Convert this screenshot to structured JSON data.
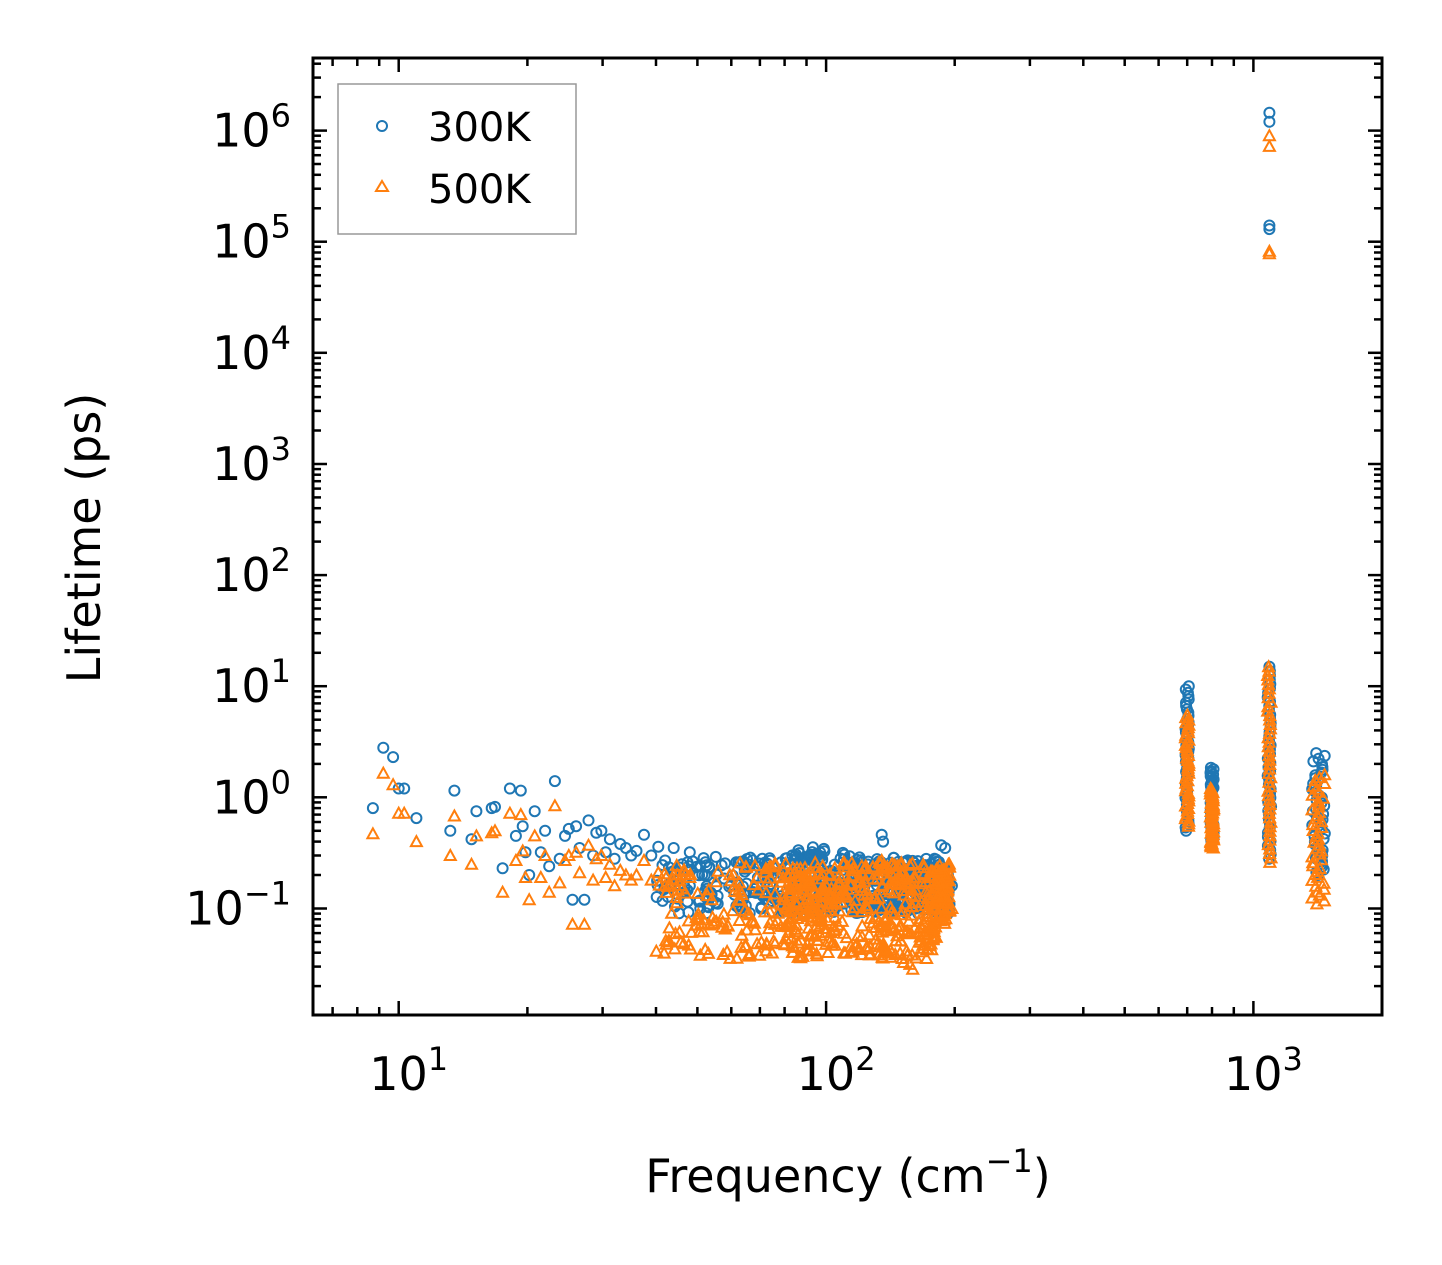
{
  "chart_data": {
    "type": "scatter",
    "title": "",
    "xlabel": "Frequency (cm",
    "xlabel_sup": "−1",
    "xlabel_close": ")",
    "ylabel": "Lifetime (ps)",
    "xscale": "log",
    "yscale": "log",
    "xlim": [
      6.3,
      2000
    ],
    "ylim": [
      0.011,
      4500000
    ],
    "x_ticks": [
      {
        "value": 10,
        "base": "10",
        "exp": "1"
      },
      {
        "value": 100,
        "base": "10",
        "exp": "2"
      },
      {
        "value": 1000,
        "base": "10",
        "exp": "3"
      }
    ],
    "y_ticks": [
      {
        "value": 0.1,
        "base": "10",
        "exp": "−1"
      },
      {
        "value": 1,
        "base": "10",
        "exp": "0"
      },
      {
        "value": 10,
        "base": "10",
        "exp": "1"
      },
      {
        "value": 100,
        "base": "10",
        "exp": "2"
      },
      {
        "value": 1000,
        "base": "10",
        "exp": "3"
      },
      {
        "value": 10000,
        "base": "10",
        "exp": "4"
      },
      {
        "value": 100000,
        "base": "10",
        "exp": "5"
      },
      {
        "value": 1000000,
        "base": "10",
        "exp": "6"
      }
    ],
    "legend_position": "top-left",
    "series": [
      {
        "name": "300K",
        "marker": "circle",
        "color": "#1f77b4",
        "points": [
          [
            8.7,
            0.8
          ],
          [
            9.2,
            2.8
          ],
          [
            9.7,
            2.3
          ],
          [
            10.0,
            1.2
          ],
          [
            10.3,
            1.2
          ],
          [
            11.0,
            0.65
          ],
          [
            13.5,
            1.15
          ],
          [
            13.2,
            0.5
          ],
          [
            14.8,
            0.42
          ],
          [
            15.2,
            0.75
          ],
          [
            16.5,
            0.8
          ],
          [
            16.8,
            0.82
          ],
          [
            17.5,
            0.23
          ],
          [
            18.2,
            1.2
          ],
          [
            18.8,
            0.45
          ],
          [
            19.3,
            1.15
          ],
          [
            19.5,
            0.55
          ],
          [
            19.8,
            0.32
          ],
          [
            20.2,
            0.2
          ],
          [
            20.8,
            0.75
          ],
          [
            21.5,
            0.32
          ],
          [
            22.0,
            0.5
          ],
          [
            22.5,
            0.24
          ],
          [
            23.2,
            1.4
          ],
          [
            23.8,
            0.28
          ],
          [
            24.5,
            0.45
          ],
          [
            25.0,
            0.52
          ],
          [
            25.5,
            0.12
          ],
          [
            26.0,
            0.55
          ],
          [
            26.5,
            0.35
          ],
          [
            27.2,
            0.12
          ],
          [
            27.8,
            0.62
          ],
          [
            28.5,
            0.3
          ],
          [
            29.0,
            0.48
          ],
          [
            29.8,
            0.5
          ],
          [
            30.5,
            0.32
          ],
          [
            31.2,
            0.42
          ],
          [
            32.0,
            0.28
          ],
          [
            33.0,
            0.38
          ],
          [
            34.0,
            0.35
          ],
          [
            35.0,
            0.3
          ],
          [
            36.0,
            0.33
          ],
          [
            37.5,
            0.46
          ],
          [
            39.0,
            0.3
          ],
          [
            40.5,
            0.36
          ],
          [
            42.0,
            0.27
          ],
          [
            44.0,
            0.35
          ],
          [
            46.0,
            0.25
          ],
          [
            48.0,
            0.32
          ],
          [
            135.0,
            0.46
          ],
          [
            136.0,
            0.4
          ],
          [
            186.0,
            0.37
          ],
          [
            190.0,
            0.35
          ],
          [
            197.0,
            0.16
          ]
        ],
        "band_points": [
          [
            40,
            0.26
          ],
          [
            60,
            0.3
          ],
          [
            80,
            0.28
          ],
          [
            90,
            0.38
          ],
          [
            100,
            0.34
          ],
          [
            120,
            0.3
          ],
          [
            140,
            0.3
          ],
          [
            160,
            0.28
          ],
          [
            180,
            0.3
          ],
          [
            195,
            0.2
          ]
        ],
        "columns": [
          {
            "x": 700,
            "min": 0.5,
            "max": 10
          },
          {
            "x": 800,
            "min": 0.4,
            "max": 1.85
          },
          {
            "x": 1090,
            "min": 0.28,
            "max": 15
          },
          {
            "x": 1420,
            "min": 0.2,
            "max": 2.5
          }
        ],
        "outliers": [
          [
            1090,
            1450000
          ],
          [
            1090,
            1200000
          ],
          [
            1090,
            140000
          ],
          [
            1090,
            130000
          ]
        ]
      },
      {
        "name": "500K",
        "marker": "triangle",
        "color": "#ff7f0e",
        "points": [
          [
            8.7,
            0.47
          ],
          [
            9.2,
            1.65
          ],
          [
            9.7,
            1.3
          ],
          [
            10.0,
            0.72
          ],
          [
            10.3,
            0.72
          ],
          [
            11.0,
            0.4
          ],
          [
            13.5,
            0.68
          ],
          [
            13.2,
            0.3
          ],
          [
            14.8,
            0.25
          ],
          [
            15.2,
            0.45
          ],
          [
            16.5,
            0.48
          ],
          [
            16.8,
            0.5
          ],
          [
            17.5,
            0.14
          ],
          [
            18.2,
            0.72
          ],
          [
            18.8,
            0.27
          ],
          [
            19.3,
            0.7
          ],
          [
            19.5,
            0.33
          ],
          [
            19.8,
            0.19
          ],
          [
            20.2,
            0.12
          ],
          [
            20.8,
            0.45
          ],
          [
            21.5,
            0.19
          ],
          [
            22.0,
            0.3
          ],
          [
            22.5,
            0.14
          ],
          [
            23.2,
            0.84
          ],
          [
            23.8,
            0.17
          ],
          [
            24.5,
            0.27
          ],
          [
            25.0,
            0.3
          ],
          [
            25.5,
            0.072
          ],
          [
            26.0,
            0.32
          ],
          [
            26.5,
            0.21
          ],
          [
            27.2,
            0.072
          ],
          [
            27.8,
            0.37
          ],
          [
            28.5,
            0.18
          ],
          [
            29.0,
            0.28
          ],
          [
            29.8,
            0.3
          ],
          [
            30.5,
            0.19
          ],
          [
            31.2,
            0.25
          ],
          [
            32.0,
            0.16
          ],
          [
            33.0,
            0.22
          ],
          [
            34.0,
            0.2
          ],
          [
            35.0,
            0.18
          ],
          [
            36.0,
            0.2
          ],
          [
            37.5,
            0.27
          ],
          [
            39.0,
            0.18
          ],
          [
            40.5,
            0.21
          ],
          [
            42.0,
            0.16
          ],
          [
            44.0,
            0.2
          ],
          [
            46.0,
            0.15
          ],
          [
            48.0,
            0.19
          ],
          [
            135.0,
            0.27
          ],
          [
            136.0,
            0.24
          ],
          [
            186.0,
            0.22
          ],
          [
            190.0,
            0.2
          ],
          [
            197.0,
            0.1
          ]
        ],
        "band_points": [
          [
            40,
            0.04
          ],
          [
            60,
            0.035
          ],
          [
            80,
            0.04
          ],
          [
            90,
            0.032
          ],
          [
            100,
            0.04
          ],
          [
            120,
            0.038
          ],
          [
            140,
            0.032
          ],
          [
            160,
            0.028
          ],
          [
            180,
            0.04
          ],
          [
            195,
            0.09
          ]
        ],
        "columns": [
          {
            "x": 700,
            "min": 0.55,
            "max": 5.5
          },
          {
            "x": 800,
            "min": 0.35,
            "max": 1.2
          },
          {
            "x": 1090,
            "min": 0.26,
            "max": 15
          },
          {
            "x": 1420,
            "min": 0.11,
            "max": 1.6
          }
        ],
        "outliers": [
          [
            1090,
            900000
          ],
          [
            1090,
            720000
          ],
          [
            1090,
            82000
          ],
          [
            1090,
            78000
          ]
        ]
      }
    ]
  }
}
